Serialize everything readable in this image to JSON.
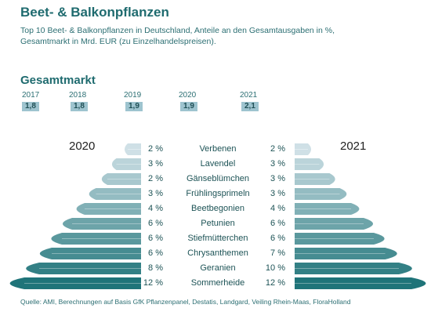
{
  "title": "Beet- & Balkonpflanzen",
  "subtitle": "Top 10 Beet- & Balkonpflanzen in Deutschland, Anteile an den Gesamtausgaben in %, Gesamtmarkt in Mrd. EUR (zu Einzelhandelspreisen).",
  "market": {
    "title": "Gesamtmarkt",
    "years": [
      "2017",
      "2018",
      "2019",
      "2020",
      "2021"
    ],
    "values": [
      "1,8",
      "1,8",
      "1,9",
      "1,9",
      "2,1"
    ]
  },
  "left_year": "2020",
  "right_year": "2021",
  "source": "Quelle: AMI, Berechnungen auf Basis GfK Pflanzenpanel, Destatis, Landgard, Veiling Rhein-Maas, FloraHolland",
  "colors": {
    "accent": "#1f6b6f",
    "band_light": "#cfe0e6",
    "band_dark": "#1f7479"
  },
  "chart_data": {
    "type": "bar",
    "categories": [
      "Verbenen",
      "Lavendel",
      "Gänseblümchen",
      "Frühlingsprimeln",
      "Beetbegonien",
      "Petunien",
      "Stiefmütterchen",
      "Chrysanthemen",
      "Geranien",
      "Sommerheide"
    ],
    "series": [
      {
        "name": "2020",
        "values": [
          2,
          3,
          2,
          3,
          4,
          6,
          6,
          6,
          8,
          12
        ],
        "labels": [
          "2 %",
          "3 %",
          "2 %",
          "3 %",
          "4 %",
          "6 %",
          "6 %",
          "6 %",
          "8 %",
          "12 %"
        ]
      },
      {
        "name": "2021",
        "values": [
          2,
          3,
          3,
          3,
          4,
          6,
          6,
          7,
          10,
          12
        ],
        "labels": [
          "2 %",
          "3 %",
          "3 %",
          "3 %",
          "4 %",
          "6 %",
          "6 %",
          "7 %",
          "10 %",
          "12 %"
        ]
      }
    ],
    "market": {
      "x": [
        "2017",
        "2018",
        "2019",
        "2020",
        "2021"
      ],
      "values": [
        1.8,
        1.8,
        1.9,
        1.9,
        2.1
      ]
    }
  }
}
